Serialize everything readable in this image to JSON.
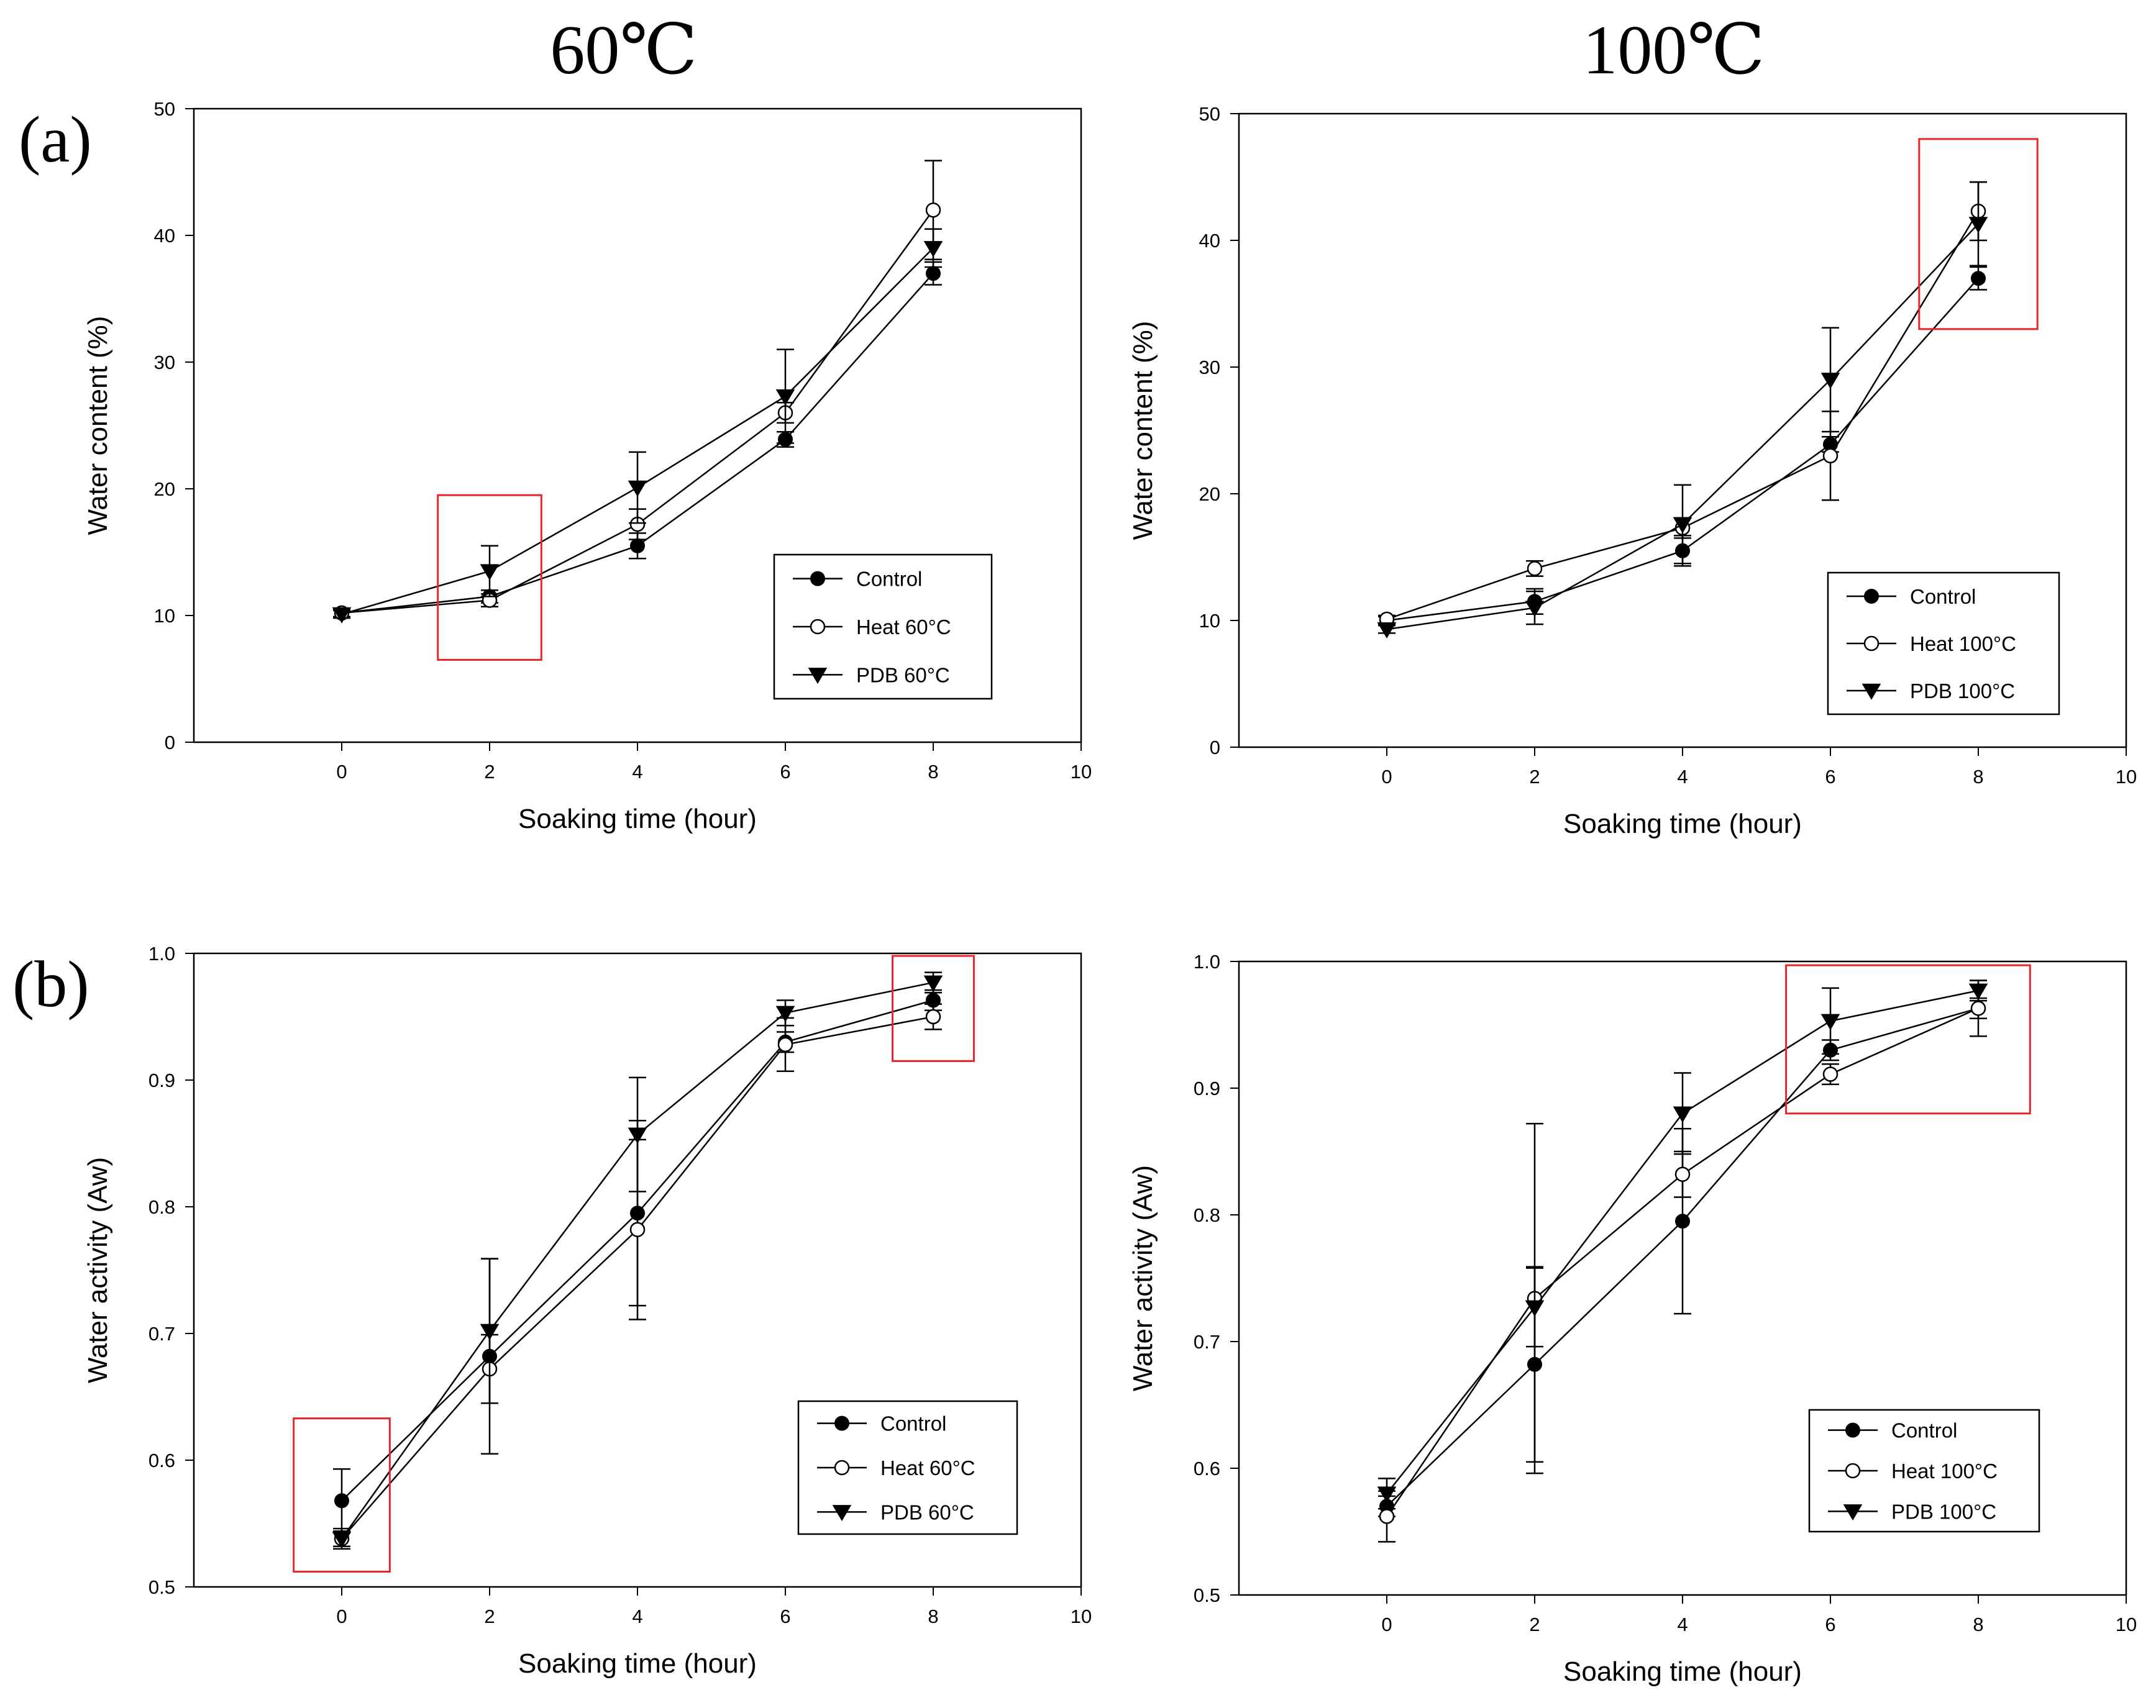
{
  "column_titles": [
    "60℃",
    "100℃"
  ],
  "panel_labels": [
    "(a)",
    "(b)"
  ],
  "colors": {
    "line": "#000000",
    "highlight": "#e8262a",
    "background": "#ffffff"
  },
  "chart_data": [
    {
      "type": "line",
      "title": "60℃",
      "xlabel": "Soaking time (hour)",
      "ylabel": "Water content (%)",
      "xlim": [
        -2,
        10
      ],
      "ylim": [
        0,
        50
      ],
      "xticks": [
        0,
        2,
        4,
        6,
        8,
        10
      ],
      "yticks": [
        0,
        10,
        20,
        30,
        40,
        50
      ],
      "x": [
        0,
        2,
        4,
        6,
        8
      ],
      "legend_position": "lower-right",
      "series": [
        {
          "name": "Control",
          "marker": "filled-circle",
          "values": [
            10.2,
            11.5,
            15.5,
            23.9,
            37.0
          ],
          "errors": [
            0.3,
            0.5,
            1.0,
            0.6,
            0.9
          ]
        },
        {
          "name": "Heat 60°C",
          "marker": "open-circle",
          "values": [
            10.2,
            11.2,
            17.2,
            26.0,
            42.0
          ],
          "errors": [
            0.3,
            0.5,
            1.2,
            0.8,
            3.9
          ]
        },
        {
          "name": "PDB 60°C",
          "marker": "filled-triangle-down",
          "values": [
            10.1,
            13.5,
            20.1,
            27.3,
            39.0
          ],
          "errors": [
            0.3,
            2.0,
            2.8,
            3.7,
            1.5
          ]
        }
      ],
      "highlight_boxes": [
        {
          "x_range": [
            1.3,
            2.7
          ],
          "y_range": [
            6.5,
            19.5
          ]
        }
      ]
    },
    {
      "type": "line",
      "title": "100℃",
      "xlabel": "Soaking time (hour)",
      "ylabel": "Water content (%)",
      "xlim": [
        -2,
        10
      ],
      "ylim": [
        0,
        50
      ],
      "xticks": [
        0,
        2,
        4,
        6,
        8,
        10
      ],
      "yticks": [
        0,
        10,
        20,
        30,
        40,
        50
      ],
      "x": [
        0,
        2,
        4,
        6,
        8
      ],
      "legend_position": "lower-right",
      "series": [
        {
          "name": "Control",
          "marker": "filled-circle",
          "values": [
            10.0,
            11.5,
            15.5,
            23.9,
            37.0
          ],
          "errors": [
            0.3,
            1.0,
            1.2,
            0.6,
            0.9
          ]
        },
        {
          "name": "Heat 100°C",
          "marker": "open-circle",
          "values": [
            10.1,
            14.1,
            17.3,
            23.0,
            42.3
          ],
          "errors": [
            0.3,
            0.6,
            0.8,
            3.5,
            2.3
          ]
        },
        {
          "name": "PDB 100°C",
          "marker": "filled-triangle-down",
          "values": [
            9.3,
            11.0,
            17.6,
            29.0,
            41.3
          ],
          "errors": [
            0.3,
            1.3,
            3.1,
            4.1,
            3.3
          ]
        }
      ],
      "highlight_boxes": [
        {
          "x_range": [
            7.2,
            8.8
          ],
          "y_range": [
            33.0,
            48.0
          ]
        }
      ]
    },
    {
      "type": "line",
      "title": "60℃",
      "xlabel": "Soaking time (hour)",
      "ylabel": "Water activity (Aw)",
      "xlim": [
        -2,
        10
      ],
      "ylim": [
        0.5,
        1.0
      ],
      "xticks": [
        0,
        2,
        4,
        6,
        8,
        10
      ],
      "yticks": [
        "0.5",
        "0.6",
        "0.7",
        "0.8",
        "0.9",
        "1.0"
      ],
      "x": [
        0,
        2,
        4,
        6,
        8
      ],
      "legend_position": "lower-right",
      "series": [
        {
          "name": "Control",
          "marker": "filled-circle",
          "values": [
            0.568,
            0.682,
            0.795,
            0.93,
            0.963
          ],
          "errors": [
            0.025,
            0.077,
            0.073,
            0.008,
            0.008
          ]
        },
        {
          "name": "Heat 60°C",
          "marker": "open-circle",
          "values": [
            0.538,
            0.672,
            0.782,
            0.928,
            0.95
          ],
          "errors": [
            0.006,
            0.027,
            0.071,
            0.021,
            0.01
          ]
        },
        {
          "name": "PDB 60°C",
          "marker": "filled-triangle-down",
          "values": [
            0.538,
            0.702,
            0.857,
            0.953,
            0.977
          ],
          "errors": [
            0.008,
            0.057,
            0.045,
            0.01,
            0.008
          ]
        }
      ],
      "highlight_boxes": [
        {
          "x_range": [
            -0.65,
            0.65
          ],
          "y_range": [
            0.512,
            0.633
          ]
        },
        {
          "x_range": [
            7.45,
            8.55
          ],
          "y_range": [
            0.915,
            0.998
          ]
        }
      ]
    },
    {
      "type": "line",
      "title": "100℃",
      "xlabel": "Soaking time (hour)",
      "ylabel": "Water activity (Aw)",
      "xlim": [
        -2,
        10
      ],
      "ylim": [
        0.5,
        1.0
      ],
      "xticks": [
        0,
        2,
        4,
        6,
        8,
        10
      ],
      "yticks": [
        "0.5",
        "0.6",
        "0.7",
        "0.8",
        "0.9",
        "1.0"
      ],
      "x": [
        0,
        2,
        4,
        6,
        8
      ],
      "legend_position": "lower-right",
      "series": [
        {
          "name": "Control",
          "marker": "filled-circle",
          "values": [
            0.57,
            0.682,
            0.795,
            0.93,
            0.963
          ],
          "errors": [
            0.008,
            0.077,
            0.073,
            0.008,
            0.008
          ]
        },
        {
          "name": "Heat 100°C",
          "marker": "open-circle",
          "values": [
            0.562,
            0.734,
            0.832,
            0.911,
            0.963
          ],
          "errors": [
            0.02,
            0.138,
            0.018,
            0.008,
            0.022
          ]
        },
        {
          "name": "PDB 100°C",
          "marker": "filled-triangle-down",
          "values": [
            0.58,
            0.727,
            0.88,
            0.953,
            0.977
          ],
          "errors": [
            0.012,
            0.031,
            0.032,
            0.026,
            0.008
          ]
        }
      ],
      "highlight_boxes": [
        {
          "x_range": [
            5.4,
            8.7
          ],
          "y_range": [
            0.88,
            0.997
          ]
        }
      ]
    }
  ]
}
